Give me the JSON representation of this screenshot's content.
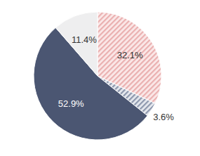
{
  "chart_data": {
    "type": "pie",
    "values": [
      32.1,
      3.6,
      52.9,
      11.4
    ],
    "value_labels": [
      "32.1%",
      "3.6%",
      "52.9%",
      "11.4%"
    ],
    "colors": [
      "#eab0b0",
      "#8d97ad",
      "#4b5672",
      "#eeeeef"
    ],
    "data_labels": true
  }
}
